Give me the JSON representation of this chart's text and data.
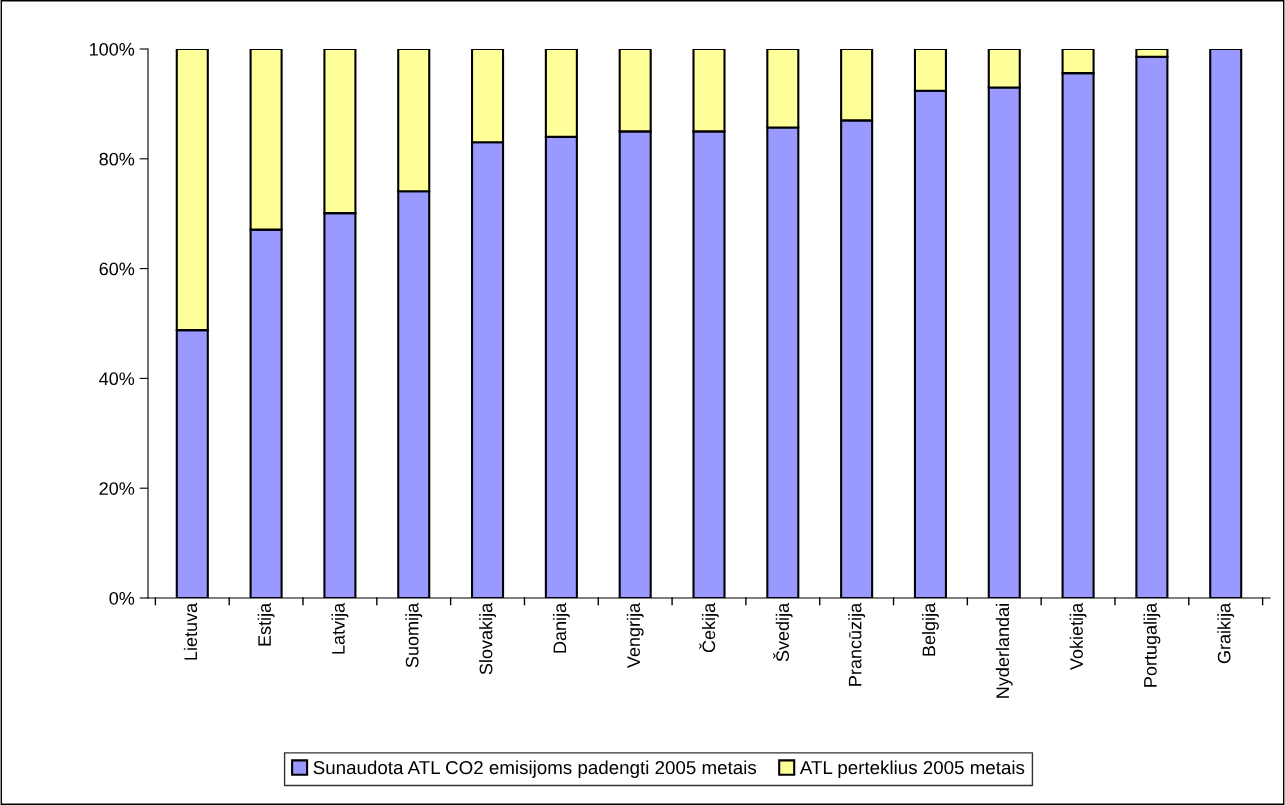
{
  "chart_data": {
    "type": "bar",
    "stacked": true,
    "categories": [
      "Lietuva",
      "Estija",
      "Latvija",
      "Suomija",
      "Slovakija",
      "Danija",
      "Vengrija",
      "Čekija",
      "Švedija",
      "Prancūzija",
      "Belgija",
      "Nyderlandai",
      "Vokietija",
      "Portugalija",
      "Graikija"
    ],
    "series": [
      {
        "name": "Sunaudota ATL CO2 emisijoms padengti 2005 metais",
        "color": "#9999ff",
        "values": [
          48.8,
          67.1,
          70.1,
          74.1,
          83.0,
          84.0,
          85.0,
          85.0,
          85.7,
          87.0,
          92.4,
          93.0,
          95.6,
          98.6,
          100
        ]
      },
      {
        "name": "ATL perteklius 2005 metais",
        "color": "#ffff99",
        "values": [
          51.2,
          32.9,
          29.9,
          25.9,
          17.0,
          16.0,
          15.0,
          15.0,
          14.3,
          13.0,
          7.6,
          7.0,
          4.4,
          1.4,
          0
        ]
      }
    ],
    "ylim": [
      0,
      100
    ],
    "yticks": [
      {
        "value": 0,
        "label": "0%"
      },
      {
        "value": 20,
        "label": "20%"
      },
      {
        "value": 40,
        "label": "40%"
      },
      {
        "value": 60,
        "label": "60%"
      },
      {
        "value": 80,
        "label": "80%"
      },
      {
        "value": 100,
        "label": "100%"
      }
    ],
    "grid": false,
    "legend": "bottom"
  }
}
